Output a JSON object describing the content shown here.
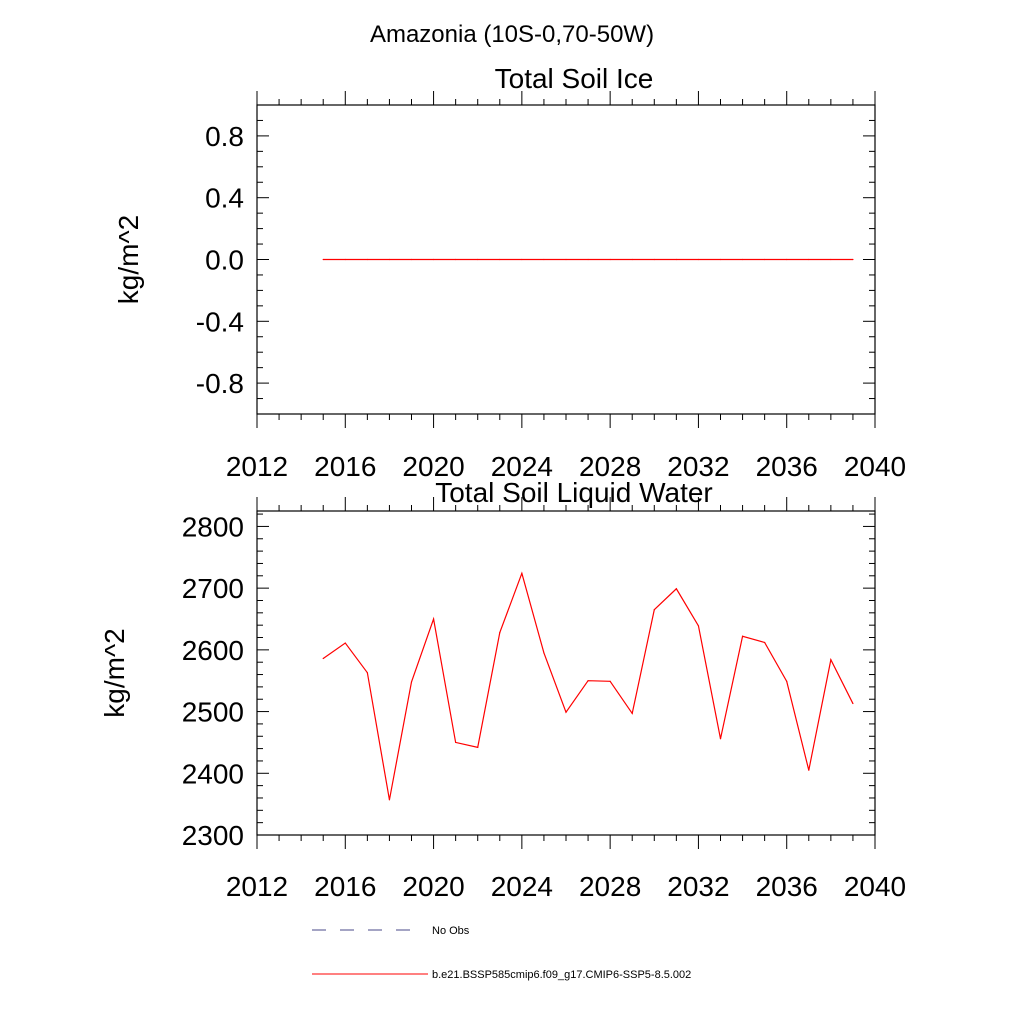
{
  "suptitle": "Amazonia (10S-0,70-50W)",
  "colors": {
    "model": "#ff0000",
    "obs": "#4a4a8a",
    "axis": "#000000"
  },
  "legend": {
    "obs_label": "No Obs",
    "model_label": "b.e21.BSSP585cmip6.f09_g17.CMIP6-SSP5-8.5.002"
  },
  "chart_data": [
    {
      "type": "line",
      "title": "Total Soil Ice",
      "xlabel": "",
      "ylabel": "kg/m^2",
      "xlim": [
        2012,
        2040
      ],
      "ylim": [
        -1.0,
        1.0
      ],
      "xticks": [
        2012,
        2016,
        2020,
        2024,
        2028,
        2032,
        2036,
        2040
      ],
      "xtick_labels": [
        "2012",
        "2016",
        "2020",
        "2024",
        "2028",
        "2032",
        "2036",
        "2040"
      ],
      "yticks": [
        -0.8,
        -0.4,
        0.0,
        0.4,
        0.8
      ],
      "ytick_labels": [
        "-0.8",
        "-0.4",
        "0.0",
        "0.4",
        "0.8"
      ],
      "yminor": 0.1,
      "series": [
        {
          "name": "b.e21.BSSP585cmip6.f09_g17.CMIP6-SSP5-8.5.002",
          "x": [
            2015,
            2016,
            2017,
            2018,
            2019,
            2020,
            2021,
            2022,
            2023,
            2024,
            2025,
            2026,
            2027,
            2028,
            2029,
            2030,
            2031,
            2032,
            2033,
            2034,
            2035,
            2036,
            2037,
            2038,
            2039
          ],
          "values": [
            0,
            0,
            0,
            0,
            0,
            0,
            0,
            0,
            0,
            0,
            0,
            0,
            0,
            0,
            0,
            0,
            0,
            0,
            0,
            0,
            0,
            0,
            0,
            0,
            0
          ]
        }
      ]
    },
    {
      "type": "line",
      "title": "Total Soil Liquid Water",
      "xlabel": "",
      "ylabel": "kg/m^2",
      "xlim": [
        2012,
        2040
      ],
      "ylim": [
        2300,
        2825
      ],
      "xticks": [
        2012,
        2016,
        2020,
        2024,
        2028,
        2032,
        2036,
        2040
      ],
      "xtick_labels": [
        "2012",
        "2016",
        "2020",
        "2024",
        "2028",
        "2032",
        "2036",
        "2040"
      ],
      "yticks": [
        2300,
        2400,
        2500,
        2600,
        2700,
        2800
      ],
      "ytick_labels": [
        "2300",
        "2400",
        "2500",
        "2600",
        "2700",
        "2800"
      ],
      "yminor": 20,
      "series": [
        {
          "name": "b.e21.BSSP585cmip6.f09_g17.CMIP6-SSP5-8.5.002",
          "x": [
            2015,
            2016,
            2017,
            2018,
            2019,
            2020,
            2021,
            2022,
            2023,
            2024,
            2025,
            2026,
            2027,
            2028,
            2029,
            2030,
            2031,
            2032,
            2033,
            2034,
            2035,
            2036,
            2037,
            2038,
            2039
          ],
          "values": [
            2586,
            2611,
            2563,
            2357,
            2548,
            2650,
            2450,
            2442,
            2628,
            2724,
            2595,
            2499,
            2550,
            2549,
            2497,
            2665,
            2699,
            2639,
            2456,
            2622,
            2612,
            2549,
            2405,
            2584,
            2513
          ]
        }
      ]
    }
  ]
}
